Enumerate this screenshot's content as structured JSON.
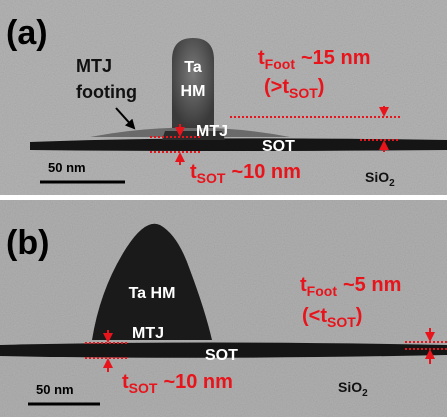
{
  "panels": [
    {
      "label": "(a)",
      "footing": [
        "MTJ",
        "footing"
      ],
      "hm": [
        "Ta",
        "HM"
      ],
      "t_foot": {
        "symbol": "t",
        "sub": "Foot",
        "value": "~15 nm"
      },
      "compare": {
        "open": "(>t",
        "sub": "SOT",
        "close": ")"
      },
      "mtj": "MTJ",
      "sot": "SOT",
      "t_sot": {
        "symbol": "t",
        "sub": "SOT",
        "value": "~10 nm"
      },
      "scale": "50 nm",
      "substrate": {
        "base": "SiO",
        "sub": "2"
      }
    },
    {
      "label": "(b)",
      "hm": "Ta HM",
      "t_foot": {
        "symbol": "t",
        "sub": "Foot",
        "value": "~5 nm"
      },
      "compare": {
        "open": "(<t",
        "sub": "SOT",
        "close": ")"
      },
      "mtj": "MTJ",
      "sot": "SOT",
      "t_sot": {
        "symbol": "t",
        "sub": "SOT",
        "value": "~10 nm"
      },
      "scale": "50 nm",
      "substrate": {
        "base": "SiO",
        "sub": "2"
      }
    }
  ]
}
